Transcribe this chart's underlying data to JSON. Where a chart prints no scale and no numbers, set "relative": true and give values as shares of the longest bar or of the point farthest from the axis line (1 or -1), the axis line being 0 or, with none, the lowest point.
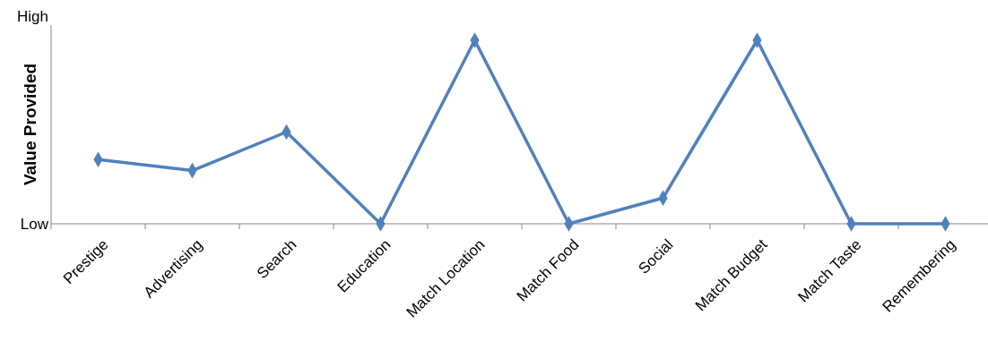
{
  "chart_data": {
    "type": "line",
    "ylabel": "Value Provided",
    "relative": true,
    "annotations": [
      "High",
      "Low"
    ],
    "categories": [
      "Prestige",
      "Advertising",
      "Search",
      "Education",
      "Match Location",
      "Match Food",
      "Social",
      "Match Budget",
      "Match Taste",
      "Remembering"
    ],
    "series": [
      {
        "color": "#4f81bd",
        "values": [
          0.35,
          0.29,
          0.5,
          0,
          1,
          0,
          0.14,
          1,
          0,
          0
        ]
      }
    ],
    "marker": "diamond",
    "line_style": "solid"
  }
}
